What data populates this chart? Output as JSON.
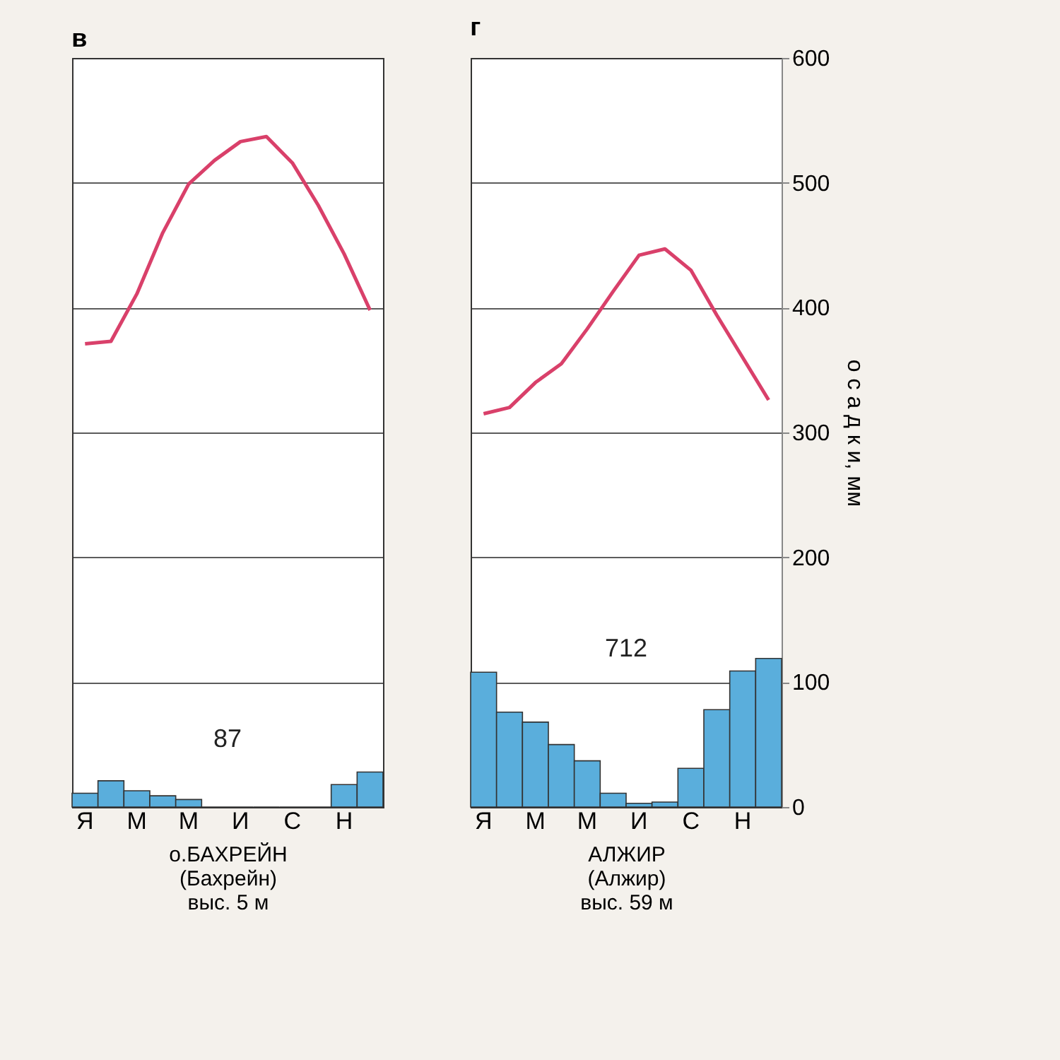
{
  "chart_data": [
    {
      "type": "bar",
      "title": "в",
      "xlabel": "о.БАХРЕЙН\n(Бахрейн)\nвыс. 5 м",
      "annotations": [
        "87"
      ],
      "categories": [
        "Я",
        null,
        "М",
        null,
        "М",
        null,
        "И",
        null,
        "С",
        null,
        "Н",
        null
      ],
      "ylim": [
        0,
        600
      ],
      "yticks": [
        0,
        100,
        200,
        300,
        400,
        500,
        600
      ],
      "tick_labels": "x",
      "grid": "y",
      "series": [
        {
          "color": "#5aaedc",
          "values": [
            11,
            21,
            13,
            9,
            6,
            0,
            0,
            0,
            0,
            0,
            18,
            28
          ]
        },
        {
          "type": "line",
          "color": "#d9406a",
          "values": [
            371,
            373,
            411,
            460,
            499,
            518,
            533,
            537,
            516,
            482,
            443,
            398
          ]
        }
      ]
    },
    {
      "type": "bar",
      "title": "г",
      "xlabel": "АЛЖИР\n(Алжир)\nвыс. 59 м",
      "ylabel": "о с а д к и, мм",
      "annotations": [
        "712"
      ],
      "categories": [
        "Я",
        null,
        "М",
        null,
        "М",
        null,
        "И",
        null,
        "С",
        null,
        "Н",
        null
      ],
      "ylim": [
        0,
        600
      ],
      "yticks": [
        0,
        100,
        200,
        300,
        400,
        500,
        600
      ],
      "grid": "y",
      "series": [
        {
          "color": "#5aaedc",
          "values": [
            108,
            76,
            68,
            50,
            37,
            11,
            3,
            4,
            31,
            78,
            109,
            119
          ]
        },
        {
          "type": "line",
          "color": "#d9406a",
          "values": [
            315,
            320,
            340,
            355,
            383,
            413,
            442,
            447,
            430,
            394,
            360,
            326
          ]
        }
      ]
    }
  ]
}
